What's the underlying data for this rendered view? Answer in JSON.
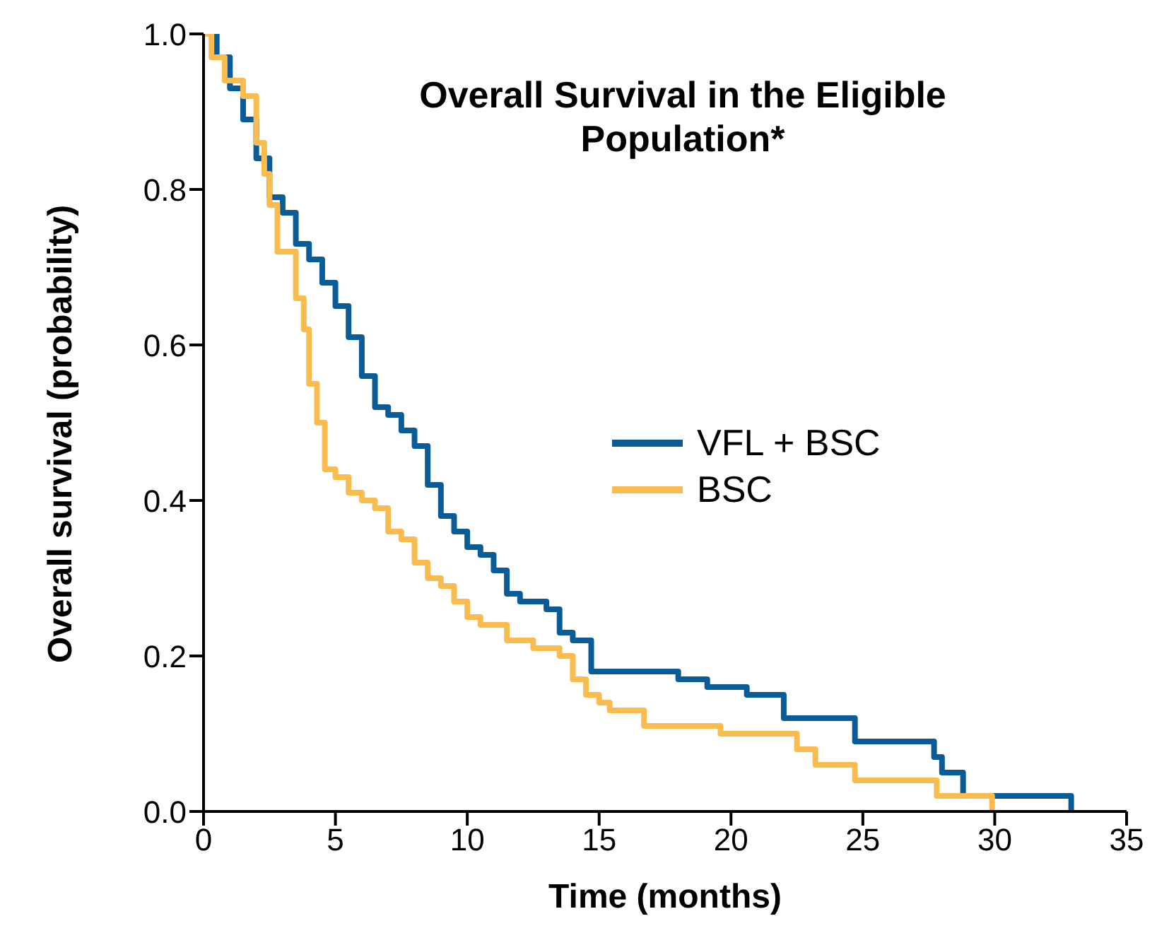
{
  "chart_data": {
    "type": "step",
    "title": "Overall Survival in the Eligible Population*",
    "xlabel": "Time (months)",
    "ylabel": "Overall survival (probability)",
    "xlim": [
      0,
      35
    ],
    "xticks": [
      0,
      5,
      10,
      15,
      20,
      25,
      30,
      35
    ],
    "ylim": [
      0,
      1
    ],
    "yticks": [
      {
        "value": 0,
        "label": "0.0"
      },
      {
        "value": 0.2,
        "label": "0.2"
      },
      {
        "value": 0.4,
        "label": "0.4"
      },
      {
        "value": 0.6,
        "label": "0.6"
      },
      {
        "value": 0.8,
        "label": "0.8"
      },
      {
        "value": 1,
        "label": "1.0"
      }
    ],
    "grid": false,
    "legend": "right",
    "series": [
      {
        "name": "VFL + BSC",
        "color": "#0a5c99",
        "x": [
          0,
          0.5,
          1,
          1.5,
          2,
          2.5,
          3,
          3.5,
          4,
          4.5,
          5,
          5.5,
          6,
          6.5,
          7,
          7.5,
          8,
          8.5,
          9,
          9.5,
          10,
          10.5,
          11,
          11.5,
          12,
          13,
          13.5,
          14,
          14.7,
          18,
          19.1,
          20.6,
          22,
          24.7,
          27.7,
          28,
          28.8,
          32.9
        ],
        "values": [
          1,
          0.97,
          0.93,
          0.89,
          0.84,
          0.79,
          0.77,
          0.73,
          0.71,
          0.68,
          0.65,
          0.61,
          0.56,
          0.52,
          0.51,
          0.49,
          0.47,
          0.42,
          0.38,
          0.36,
          0.34,
          0.33,
          0.31,
          0.28,
          0.27,
          0.26,
          0.23,
          0.22,
          0.18,
          0.17,
          0.16,
          0.15,
          0.12,
          0.09,
          0.07,
          0.05,
          0.02,
          0
        ]
      },
      {
        "name": "BSC",
        "color": "#fbbc4f",
        "x": [
          0,
          0.3,
          0.8,
          1.5,
          2,
          2.3,
          2.5,
          2.8,
          3.5,
          3.8,
          4,
          4.3,
          4.6,
          5,
          5.5,
          6,
          6.5,
          7,
          7.5,
          8,
          8.5,
          9,
          9.5,
          10,
          10.5,
          11.5,
          12.5,
          13.5,
          14,
          14.5,
          15,
          15.4,
          16.7,
          19.6,
          22.5,
          23.2,
          24.7,
          27.8,
          29.9
        ],
        "values": [
          1,
          0.97,
          0.94,
          0.92,
          0.86,
          0.82,
          0.78,
          0.72,
          0.66,
          0.62,
          0.55,
          0.5,
          0.44,
          0.43,
          0.41,
          0.4,
          0.39,
          0.36,
          0.35,
          0.32,
          0.3,
          0.29,
          0.27,
          0.25,
          0.24,
          0.22,
          0.21,
          0.2,
          0.17,
          0.15,
          0.14,
          0.13,
          0.11,
          0.1,
          0.08,
          0.06,
          0.04,
          0.02,
          0
        ]
      }
    ]
  }
}
